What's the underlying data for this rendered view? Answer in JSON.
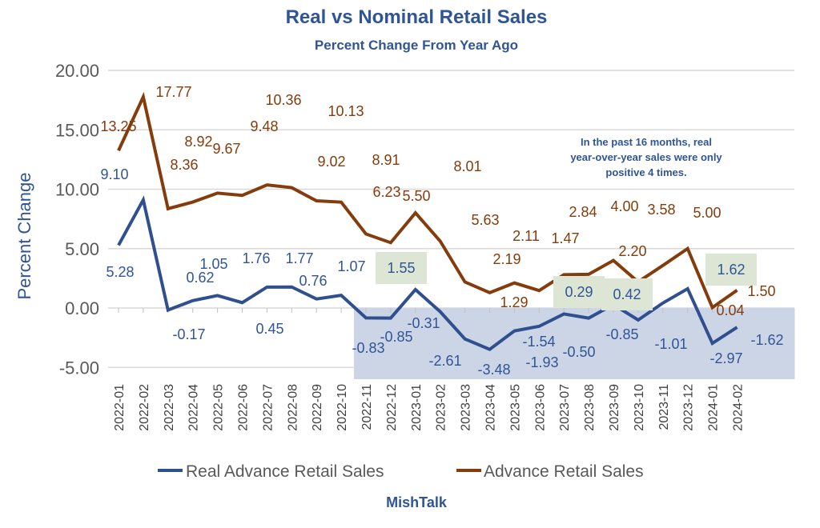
{
  "chart_data": {
    "type": "line",
    "title": "Real vs Nominal Retail Sales",
    "subtitle": "Percent Change From Year Ago",
    "ylabel": "Percent Change",
    "xlabel": "",
    "ylim": [
      -5,
      20
    ],
    "yticks": [
      "20.00",
      "15.00",
      "10.00",
      "5.00",
      "0.00",
      "-5.00"
    ],
    "grid": true,
    "legend": "bottom",
    "categories": [
      "2022-01",
      "2022-02",
      "2022-03",
      "2022-04",
      "2022-05",
      "2022-06",
      "2022-07",
      "2022-08",
      "2022-09",
      "2022-10",
      "2022-11",
      "2022-12",
      "2023-01",
      "2023-02",
      "2023-03",
      "2023-04",
      "2023-05",
      "2023-06",
      "2023-07",
      "2023-08",
      "2023-09",
      "2023-10",
      "2023-11",
      "2023-12",
      "2024-01",
      "2024-02"
    ],
    "series": [
      {
        "name": "Real Advance Retail Sales",
        "color": "#2f4f8f",
        "values": [
          5.28,
          9.1,
          -0.17,
          0.62,
          1.05,
          0.45,
          1.76,
          1.77,
          0.76,
          1.07,
          -0.83,
          -0.85,
          1.55,
          -0.31,
          -2.61,
          -3.48,
          -1.93,
          -1.54,
          -0.5,
          -0.85,
          0.29,
          -1.01,
          0.42,
          1.62,
          -2.97,
          -1.62
        ],
        "labels": [
          "5.28",
          "9.10",
          "-0.17",
          "0.62",
          "1.05",
          "0.45",
          "1.76",
          "1.77",
          "0.76",
          "1.07",
          "-0.83",
          "-0.85",
          "1.55",
          "-0.31",
          "-2.61",
          "-3.48",
          "-1.93",
          "-1.54",
          "-0.50",
          "-0.85",
          "0.29",
          "-1.01",
          "0.42",
          "1.62",
          "-2.97",
          "-1.62"
        ],
        "highlighted": [
          "2023-01",
          "2023-09",
          "2023-11",
          "2023-12"
        ]
      },
      {
        "name": "Advance Retail Sales",
        "color": "#843c0c",
        "values": [
          13.25,
          17.77,
          8.36,
          8.92,
          9.67,
          9.48,
          10.36,
          10.13,
          9.02,
          8.91,
          6.23,
          5.5,
          8.01,
          5.63,
          2.19,
          1.29,
          2.11,
          1.47,
          2.8,
          2.84,
          4.0,
          2.2,
          3.58,
          5.0,
          0.04,
          1.5
        ],
        "labels": [
          "13.25",
          "17.77",
          "8.36",
          "8.92",
          "9.67",
          "9.48",
          "10.36",
          "10.13",
          "9.02",
          "8.91",
          "6.23",
          "5.50",
          "8.01",
          "5.63",
          "2.19",
          "1.29",
          "2.11",
          "1.47",
          null,
          "2.84",
          "4.00",
          "2.20",
          "3.58",
          "5.00",
          "0.04",
          "1.50"
        ]
      }
    ],
    "shaded_region": {
      "from": "2022-11",
      "to": "2024-02",
      "color": "#ccd5e6"
    },
    "highlight_color": "#dde6d5",
    "annotation": "In the past 16 months, real year-over-year sales were only positive 4 times.",
    "annotation_lines": [
      "In the past 16 months, real",
      "year-over-year sales were only",
      "positive 4 times."
    ],
    "footer": "MishTalk"
  }
}
